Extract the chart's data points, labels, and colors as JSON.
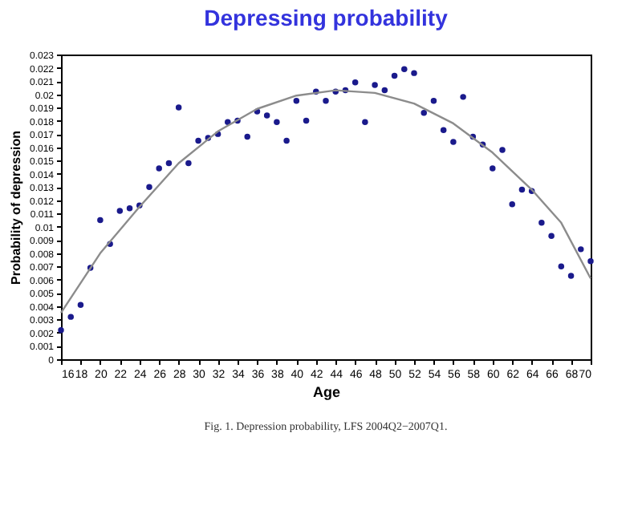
{
  "chart_data": {
    "type": "scatter",
    "title": "Depressing probability",
    "xlabel": "Age",
    "ylabel": "Probability of depression",
    "annotations": [
      "Fig. 1. Depression probability, LFS 2004Q2−2007Q1."
    ],
    "xlim": [
      16,
      70
    ],
    "xticks": [
      16,
      18,
      20,
      22,
      24,
      26,
      28,
      30,
      32,
      34,
      36,
      38,
      40,
      42,
      44,
      46,
      48,
      50,
      52,
      54,
      56,
      58,
      60,
      62,
      64,
      66,
      68,
      70
    ],
    "ylim": [
      0,
      0.023
    ],
    "yticks": [
      0,
      0.001,
      0.002,
      0.003,
      0.004,
      0.005,
      0.006,
      0.007,
      0.008,
      0.009,
      0.01,
      0.011,
      0.012,
      0.013,
      0.014,
      0.015,
      0.016,
      0.017,
      0.018,
      0.019,
      0.02,
      0.021,
      0.022,
      0.023
    ],
    "grid": false,
    "series": [
      {
        "marker": "circle",
        "color": "#1a1a8c",
        "x": [
          16,
          17,
          18,
          19,
          20,
          21,
          22,
          23,
          24,
          25,
          26,
          27,
          28,
          29,
          30,
          31,
          32,
          33,
          34,
          35,
          36,
          37,
          38,
          39,
          40,
          41,
          42,
          43,
          44,
          45,
          46,
          47,
          48,
          49,
          50,
          51,
          52,
          53,
          54,
          55,
          56,
          57,
          58,
          59,
          60,
          61,
          62,
          63,
          64,
          65,
          66,
          67,
          68,
          69,
          70
        ],
        "values": [
          0.0022,
          0.0032,
          0.0041,
          0.0069,
          0.0105,
          0.0087,
          0.0112,
          0.0114,
          0.0116,
          0.013,
          0.0144,
          0.0148,
          0.019,
          0.0148,
          0.0165,
          0.0167,
          0.017,
          0.0179,
          0.018,
          0.0168,
          0.0187,
          0.0184,
          0.0179,
          0.0165,
          0.0195,
          0.018,
          0.0202,
          0.0195,
          0.0202,
          0.0203,
          0.0209,
          0.0179,
          0.0207,
          0.0203,
          0.0214,
          0.0219,
          0.0216,
          0.0186,
          0.0195,
          0.0173,
          0.0164,
          0.0198,
          0.0168,
          0.0162,
          0.0144,
          0.0158,
          0.0117,
          0.0128,
          0.0127,
          0.0103,
          0.0093,
          0.007,
          0.0063,
          0.0083,
          0.0074
        ]
      },
      {
        "type": "line",
        "color": "#8c8c8c",
        "x": [
          16,
          20,
          24,
          28,
          32,
          36,
          40,
          44,
          48,
          52,
          56,
          60,
          64,
          67,
          70
        ],
        "values": [
          0.0035,
          0.008,
          0.0115,
          0.0148,
          0.0172,
          0.0189,
          0.0199,
          0.0203,
          0.0201,
          0.0193,
          0.0178,
          0.0156,
          0.0128,
          0.0103,
          0.0061
        ]
      }
    ]
  }
}
